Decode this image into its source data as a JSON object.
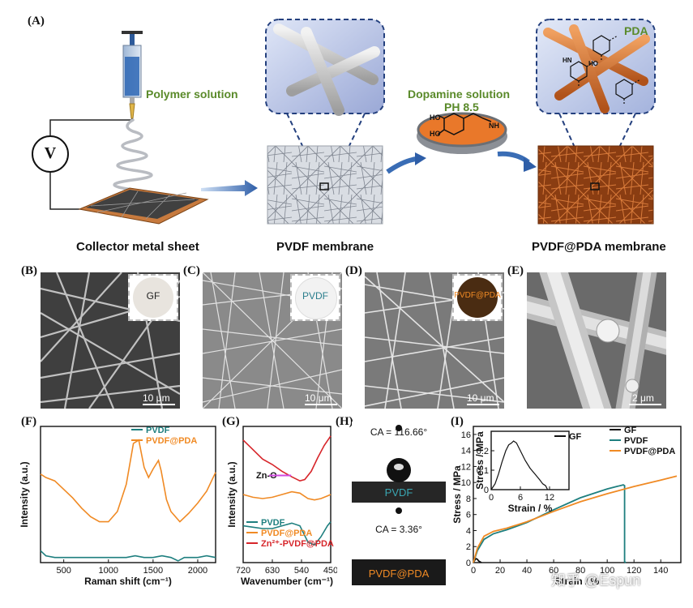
{
  "panel_a": {
    "label": "(A)",
    "polymer_solution": "Polymer solution",
    "voltage_symbol": "V",
    "dopamine_solution": "Dopamine solution",
    "ph": "PH 8.5",
    "pda": "PDA",
    "molecule_labels": {
      "ho": "HO",
      "nh2": "NH",
      "hn": "HN"
    },
    "captions": [
      "Collector metal sheet",
      "PVDF membrane",
      "PVDF@PDA membrane"
    ]
  },
  "panel_b": {
    "label": "(B)",
    "inset": "GF",
    "scale": "10 μm"
  },
  "panel_c": {
    "label": "(C)",
    "inset": "PVDF",
    "scale": "10 μm"
  },
  "panel_d": {
    "label": "(D)",
    "inset": "PVDF@PDA",
    "scale": "10 μm"
  },
  "panel_e": {
    "label": "(E)",
    "scale": "2 μm"
  },
  "panel_f": {
    "label": "(F)"
  },
  "panel_g": {
    "label": "(G)",
    "annotation": "Zn-O"
  },
  "panel_h": {
    "label": "(H)",
    "top": {
      "ca": "CA = 116.66°",
      "sample": "PVDF"
    },
    "bottom": {
      "ca": "CA = 3.36°",
      "sample": "PVDF@PDA"
    }
  },
  "panel_i": {
    "label": "(I)"
  },
  "watermark": "知乎 @Espun",
  "chart_data": [
    {
      "type": "line",
      "panel": "F",
      "xlabel": "Raman shift (cm⁻¹)",
      "ylabel": "Intensity (a.u.)",
      "xlim": [
        240,
        2200
      ],
      "xticks": [
        500,
        1000,
        1500,
        2000
      ],
      "series": [
        {
          "name": "PVDF",
          "color": "#1e7f7f",
          "x": [
            240,
            300,
            400,
            500,
            600,
            700,
            800,
            900,
            1000,
            1100,
            1200,
            1300,
            1400,
            1500,
            1600,
            1700,
            1780,
            1850,
            1900,
            2000,
            2100,
            2200
          ],
          "y": [
            0.07,
            0.04,
            0.03,
            0.03,
            0.03,
            0.03,
            0.03,
            0.03,
            0.03,
            0.03,
            0.03,
            0.04,
            0.03,
            0.03,
            0.04,
            0.03,
            0.01,
            0.03,
            0.03,
            0.03,
            0.04,
            0.03
          ]
        },
        {
          "name": "PVDF@PDA",
          "color": "#f08a24",
          "x": [
            240,
            300,
            400,
            500,
            600,
            700,
            800,
            900,
            1000,
            1100,
            1200,
            1280,
            1340,
            1400,
            1450,
            1500,
            1560,
            1590,
            1650,
            1700,
            1800,
            1900,
            2000,
            2100,
            2200
          ],
          "y": [
            0.52,
            0.5,
            0.48,
            0.43,
            0.38,
            0.32,
            0.27,
            0.24,
            0.24,
            0.3,
            0.46,
            0.7,
            0.72,
            0.56,
            0.5,
            0.55,
            0.6,
            0.54,
            0.37,
            0.3,
            0.24,
            0.29,
            0.35,
            0.42,
            0.53
          ]
        }
      ]
    },
    {
      "type": "line",
      "panel": "G",
      "xlabel": "Wavenumber (cm⁻¹)",
      "ylabel": "Intensity (a.u.)",
      "xlim": [
        720,
        450
      ],
      "xticks": [
        720,
        630,
        540,
        450
      ],
      "series": [
        {
          "name": "PVDF",
          "color": "#1e7f7f",
          "x": [
            720,
            690,
            660,
            630,
            600,
            570,
            545,
            520,
            500,
            480,
            460,
            450
          ],
          "y": [
            0.27,
            0.26,
            0.25,
            0.25,
            0.27,
            0.29,
            0.27,
            0.15,
            0.13,
            0.19,
            0.27,
            0.3
          ]
        },
        {
          "name": "PVDF@PDA",
          "color": "#f08a24",
          "x": [
            720,
            690,
            660,
            630,
            600,
            570,
            545,
            520,
            500,
            480,
            460,
            450
          ],
          "y": [
            0.5,
            0.48,
            0.47,
            0.48,
            0.5,
            0.52,
            0.51,
            0.47,
            0.46,
            0.47,
            0.49,
            0.5
          ]
        },
        {
          "name": "Zn²⁺-PVDF@PDA",
          "color": "#d7262b",
          "x": [
            720,
            690,
            660,
            630,
            600,
            570,
            545,
            530,
            510,
            490,
            470,
            450
          ],
          "y": [
            0.9,
            0.83,
            0.76,
            0.72,
            0.67,
            0.63,
            0.6,
            0.61,
            0.67,
            0.77,
            0.86,
            0.93
          ]
        }
      ]
    },
    {
      "type": "line",
      "panel": "I",
      "xlabel": "Strain / %",
      "ylabel": "Stress / MPa",
      "xlim": [
        0,
        155
      ],
      "ylim": [
        0,
        17
      ],
      "xticks": [
        0,
        20,
        40,
        60,
        80,
        100,
        120,
        140
      ],
      "yticks": [
        0,
        2,
        4,
        6,
        8,
        10,
        12,
        14,
        16
      ],
      "series": [
        {
          "name": "GF",
          "color": "#111111",
          "x": [
            0,
            1,
            2,
            3,
            4,
            5,
            6
          ],
          "y": [
            0,
            0.3,
            0.5,
            0.4,
            0.2,
            0.1,
            0
          ]
        },
        {
          "name": "PVDF",
          "color": "#1e7f7f",
          "x": [
            0,
            3,
            8,
            15,
            25,
            40,
            60,
            80,
            100,
            112,
            113,
            113,
            114
          ],
          "y": [
            0,
            1.5,
            2.9,
            3.6,
            4.1,
            5.0,
            6.6,
            8.1,
            9.2,
            9.7,
            9.6,
            0.1,
            0
          ]
        },
        {
          "name": "PVDF@PDA",
          "color": "#f08a24",
          "x": [
            0,
            3,
            8,
            15,
            25,
            40,
            60,
            80,
            100,
            120,
            140,
            152
          ],
          "y": [
            0,
            1.8,
            3.3,
            3.9,
            4.3,
            5.1,
            6.4,
            7.6,
            8.6,
            9.5,
            10.3,
            10.8
          ]
        }
      ]
    },
    {
      "type": "line",
      "panel": "I-inset",
      "xlabel": "Strain / %",
      "ylabel": "Stress / MPa",
      "xlim": [
        0,
        16
      ],
      "ylim": [
        0,
        0.3
      ],
      "xticks": [
        0,
        6,
        12
      ],
      "yticks": [
        0.0,
        0.1,
        0.2
      ],
      "series": [
        {
          "name": "GF",
          "color": "#111111",
          "x": [
            0,
            0.8,
            1.5,
            2.2,
            3.0,
            3.6,
            4.2,
            4.6,
            5.2,
            6.0,
            7.0,
            8.0,
            9.0,
            10.0,
            10.6,
            11.2,
            11.6
          ],
          "y": [
            0,
            0.03,
            0.08,
            0.14,
            0.2,
            0.23,
            0.24,
            0.25,
            0.24,
            0.2,
            0.15,
            0.11,
            0.08,
            0.05,
            0.03,
            0.02,
            0.0
          ]
        }
      ]
    }
  ]
}
